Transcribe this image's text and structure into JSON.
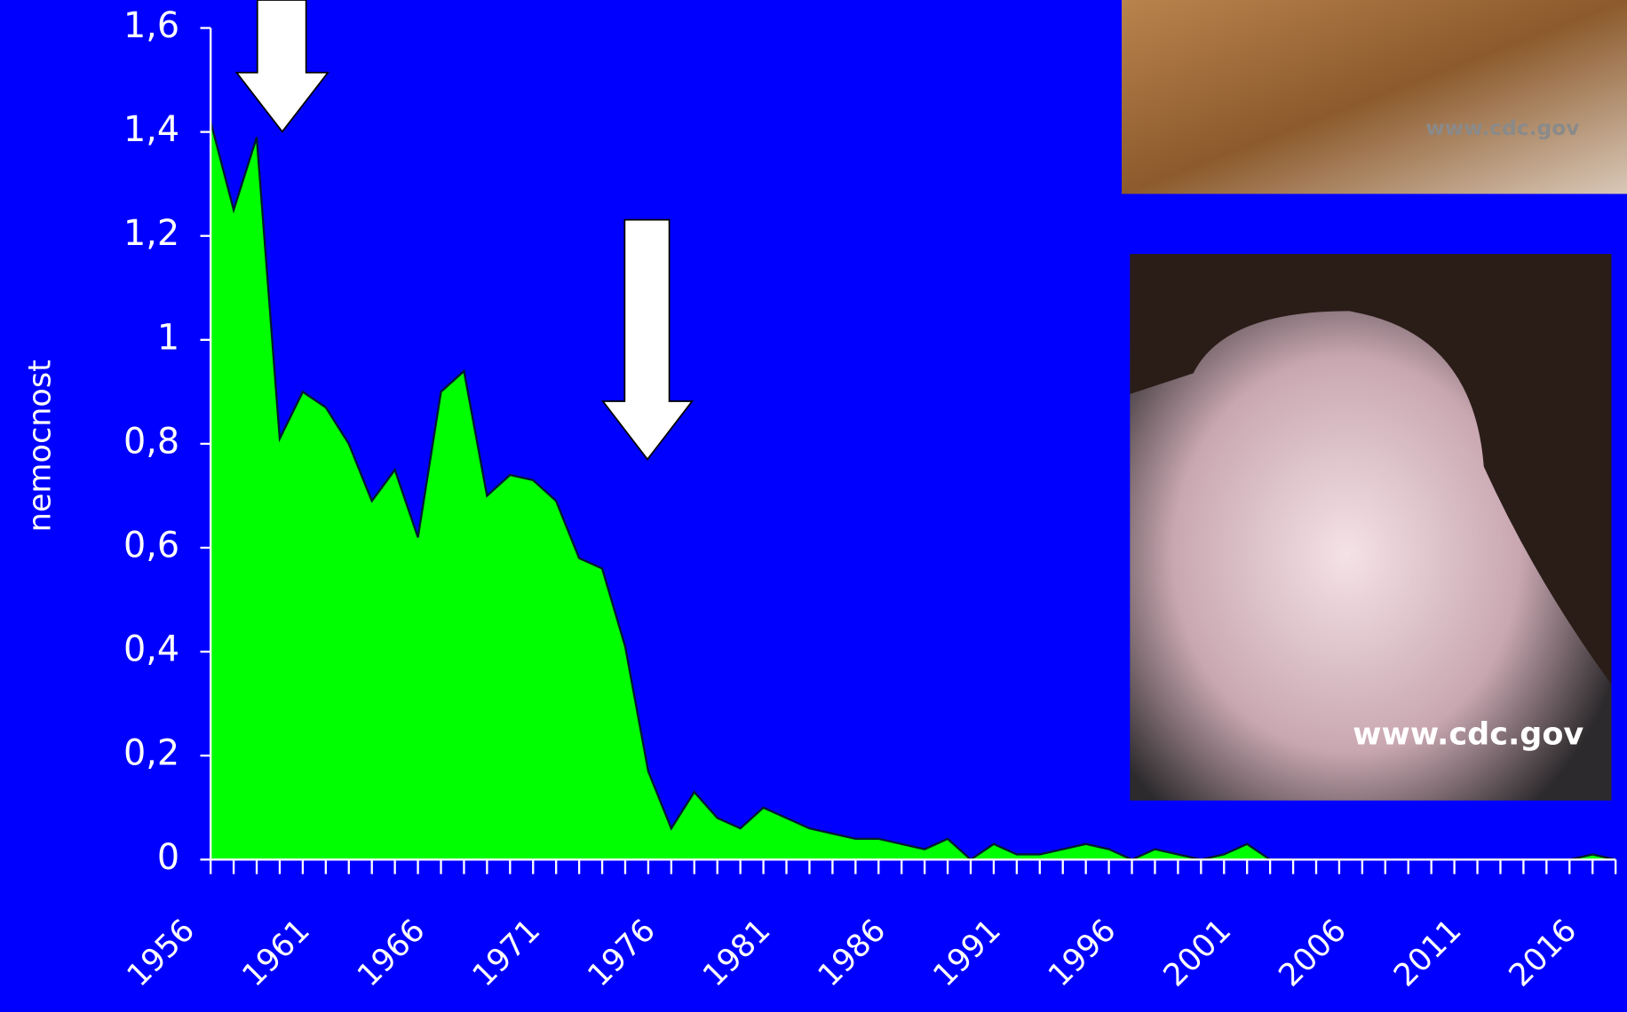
{
  "chart_data": {
    "type": "area",
    "y_label": "nemocnost",
    "x": [
      1956,
      1957,
      1958,
      1959,
      1960,
      1961,
      1962,
      1963,
      1964,
      1965,
      1966,
      1967,
      1968,
      1969,
      1970,
      1971,
      1972,
      1973,
      1974,
      1975,
      1976,
      1977,
      1978,
      1979,
      1980,
      1981,
      1982,
      1983,
      1984,
      1985,
      1986,
      1987,
      1988,
      1989,
      1990,
      1991,
      1992,
      1993,
      1994,
      1995,
      1996,
      1997,
      1998,
      1999,
      2000,
      2001,
      2002,
      2003,
      2004,
      2005,
      2006,
      2007,
      2008,
      2009,
      2010,
      2011,
      2012,
      2013,
      2014,
      2015,
      2016,
      2017
    ],
    "values": [
      1.42,
      1.25,
      1.39,
      0.81,
      0.9,
      0.87,
      0.8,
      0.69,
      0.75,
      0.62,
      0.9,
      0.94,
      0.7,
      0.74,
      0.73,
      0.69,
      0.58,
      0.56,
      0.41,
      0.17,
      0.06,
      0.13,
      0.08,
      0.06,
      0.1,
      0.08,
      0.06,
      0.05,
      0.04,
      0.04,
      0.03,
      0.02,
      0.04,
      0,
      0.03,
      0.01,
      0.01,
      0.02,
      0.03,
      0.02,
      0,
      0.02,
      0.01,
      0,
      0.01,
      0.03,
      0,
      0,
      0,
      0,
      0,
      0,
      0,
      0,
      0,
      0,
      0,
      0,
      0,
      0,
      0.01,
      0
    ],
    "color": "#00ff00",
    "xlim": [
      1956,
      2017
    ],
    "xticks": [
      1956,
      1961,
      1966,
      1971,
      1976,
      1981,
      1986,
      1991,
      1996,
      2001,
      2006,
      2011,
      2016
    ],
    "ylim": [
      0,
      1.6
    ],
    "yticks": [
      0,
      {
        "value": 0.2,
        "label": "0,2"
      },
      {
        "value": 0.4,
        "label": "0,4"
      },
      {
        "value": 0.6,
        "label": "0,6"
      },
      {
        "value": 0.8,
        "label": "0,8"
      },
      1,
      {
        "value": 1.2,
        "label": "1,2"
      },
      {
        "value": 1.4,
        "label": "1,4"
      },
      {
        "value": 1.6,
        "label": "1,6"
      }
    ]
  },
  "images": [
    {
      "caption": "www.cdc.gov"
    },
    {
      "caption": "www.cdc.gov"
    }
  ]
}
